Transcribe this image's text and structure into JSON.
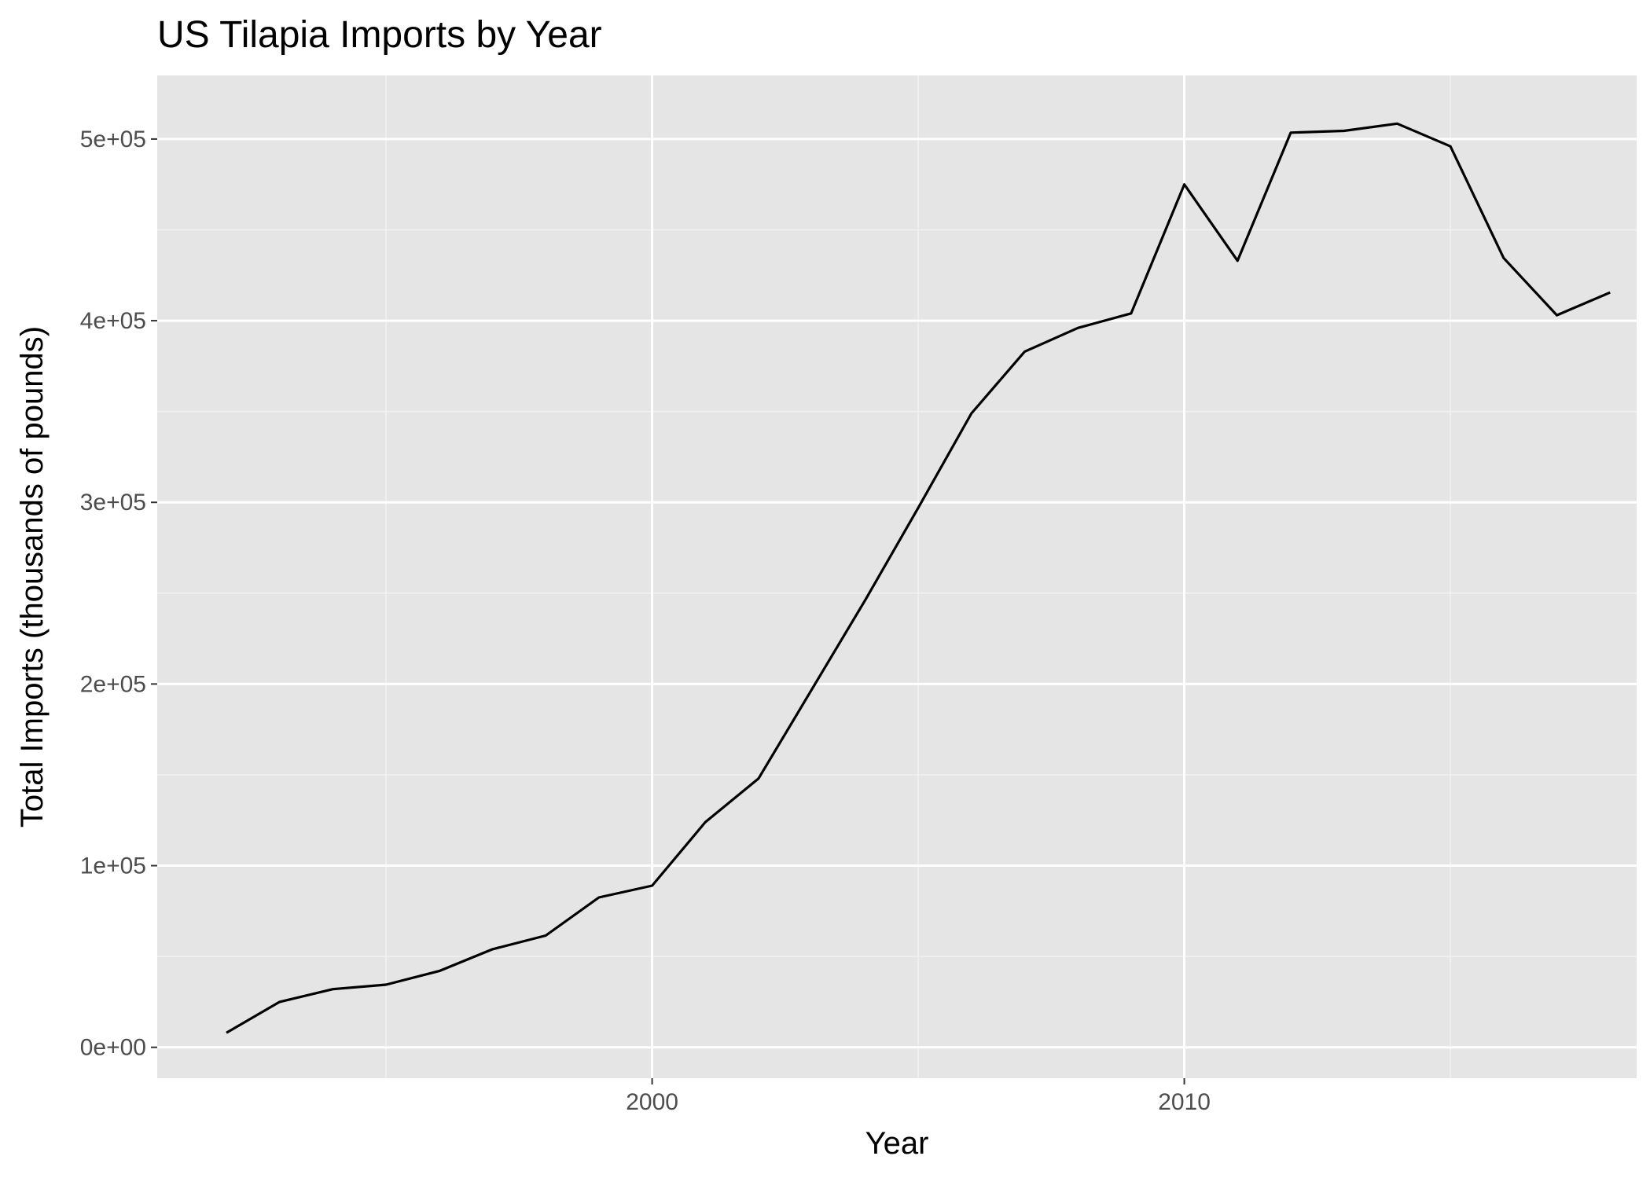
{
  "chart_data": {
    "type": "line",
    "title": "US Tilapia Imports by Year",
    "xlabel": "Year",
    "ylabel": "Total Imports (thousands of pounds)",
    "x": [
      1992,
      1993,
      1994,
      1995,
      1996,
      1997,
      1998,
      1999,
      2000,
      2001,
      2002,
      2003,
      2004,
      2005,
      2006,
      2007,
      2008,
      2009,
      2010,
      2011,
      2012,
      2013,
      2014,
      2015,
      2016,
      2017,
      2018
    ],
    "series": [
      {
        "values": [
          8000,
          25000,
          32000,
          34500,
          42000,
          54000,
          61500,
          82500,
          89000,
          124000,
          148000,
          197000,
          246000,
          297000,
          349000,
          383000,
          396000,
          404000,
          475000,
          433000,
          503500,
          504500,
          508500,
          496000,
          434500,
          403000,
          415500
        ]
      }
    ],
    "xlim": [
      1990.7,
      2018.5
    ],
    "ylim": [
      -17000,
      535000
    ],
    "x_ticks": [
      2000,
      2010
    ],
    "x_tick_labels": [
      "2000",
      "2010"
    ],
    "x_minor_ticks": [
      1995,
      2005,
      2015
    ],
    "y_ticks": [
      0,
      100000,
      200000,
      300000,
      400000,
      500000
    ],
    "y_tick_labels": [
      "0e+00",
      "1e+05",
      "2e+05",
      "3e+05",
      "4e+05",
      "5e+05"
    ],
    "y_minor_ticks": [
      50000,
      150000,
      250000,
      350000,
      450000
    ],
    "grid": true,
    "legend": "none",
    "colors": {
      "panel_background": "#e5e5e5",
      "grid_major": "#ffffff",
      "grid_minor": "#f2f2f2",
      "line": "#000000",
      "tick_label": "#4d4d4d"
    }
  }
}
